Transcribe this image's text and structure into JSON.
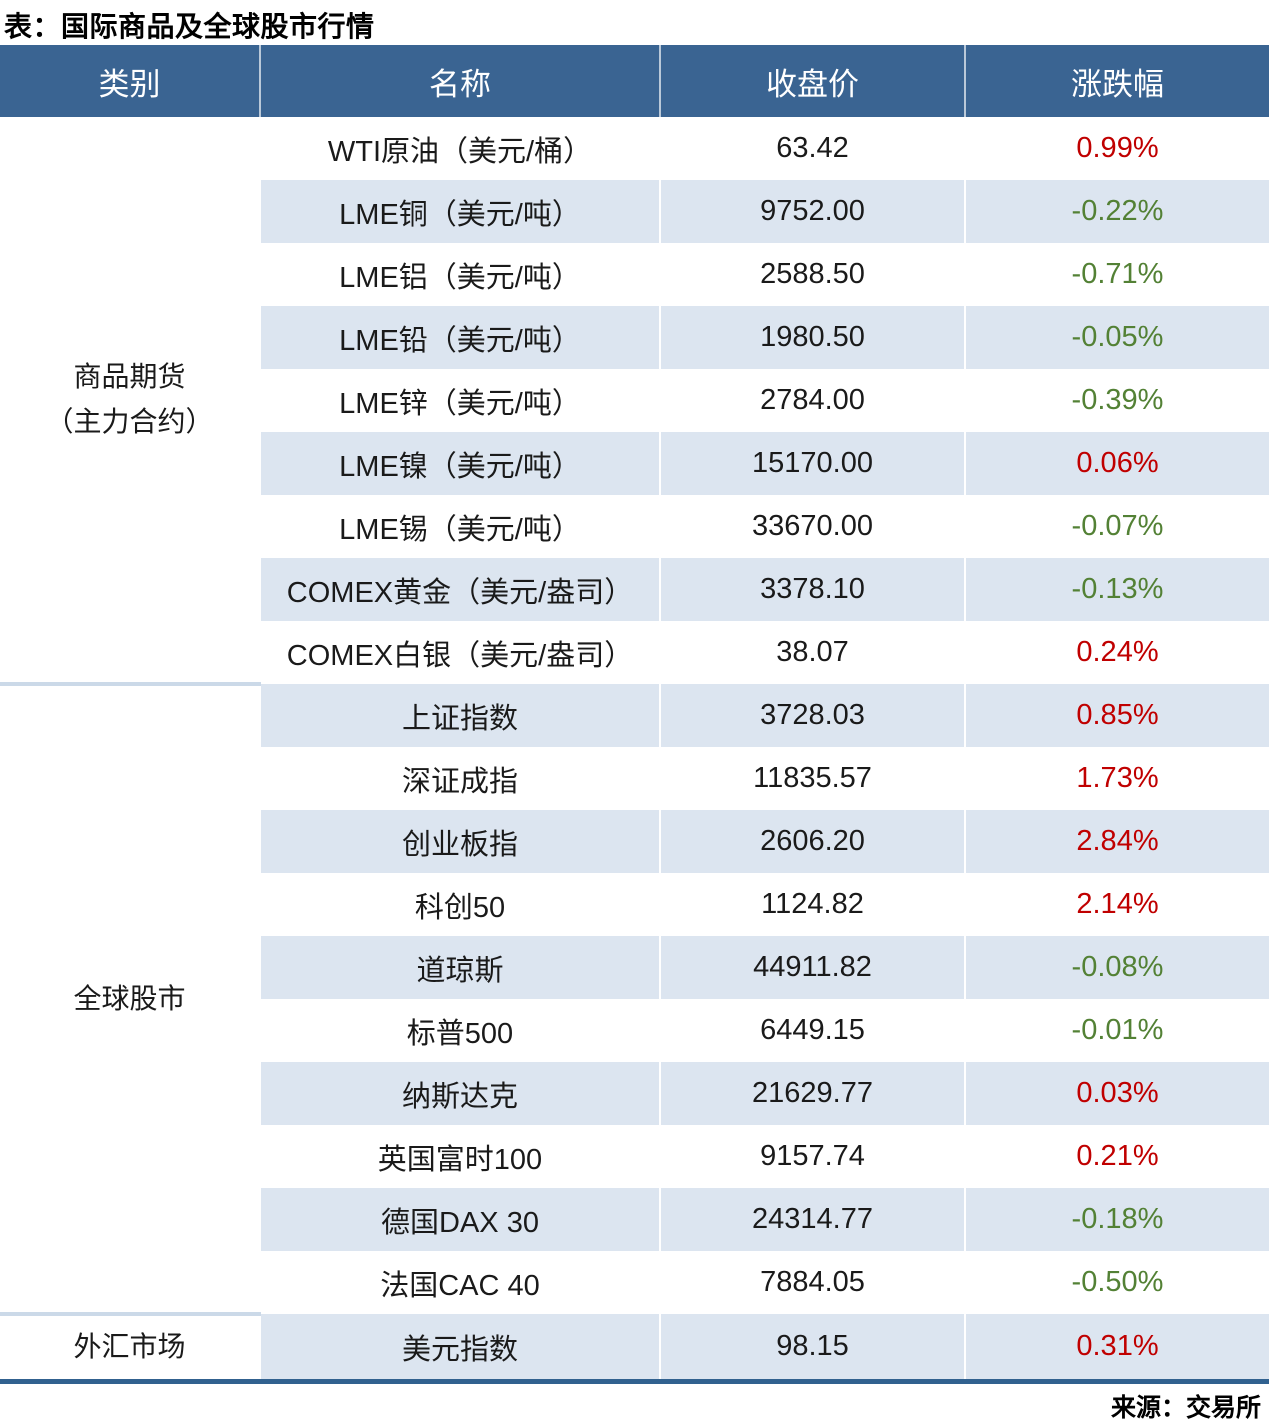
{
  "title": "表：国际商品及全球股市行情",
  "source": "来源：交易所",
  "colors": {
    "header_bg": "#3A6492",
    "header_text": "#FFFFFF",
    "alt_row_bg": "#DCE5F0",
    "row_bg": "#FFFFFF",
    "up": "#C00000",
    "down": "#538135",
    "section_divider": "#CBD9E8",
    "bottom_border": "#31618F",
    "text": "#1A1A1A"
  },
  "table": {
    "columns": [
      "类别",
      "名称",
      "收盘价",
      "涨跌幅"
    ],
    "categories": [
      {
        "label": "商品期货（主力合约）",
        "label_lines": [
          "商品期货",
          "（主力合约）"
        ],
        "rows": [
          {
            "name": "WTI原油（美元/桶）",
            "close": "63.42",
            "change": "0.99%",
            "direction": "up"
          },
          {
            "name": "LME铜（美元/吨）",
            "close": "9752.00",
            "change": "-0.22%",
            "direction": "down"
          },
          {
            "name": "LME铝（美元/吨）",
            "close": "2588.50",
            "change": "-0.71%",
            "direction": "down"
          },
          {
            "name": "LME铅（美元/吨）",
            "close": "1980.50",
            "change": "-0.05%",
            "direction": "down"
          },
          {
            "name": "LME锌（美元/吨）",
            "close": "2784.00",
            "change": "-0.39%",
            "direction": "down"
          },
          {
            "name": "LME镍（美元/吨）",
            "close": "15170.00",
            "change": "0.06%",
            "direction": "up"
          },
          {
            "name": "LME锡（美元/吨）",
            "close": "33670.00",
            "change": "-0.07%",
            "direction": "down"
          },
          {
            "name": "COMEX黄金（美元/盎司）",
            "close": "3378.10",
            "change": "-0.13%",
            "direction": "down"
          },
          {
            "name": "COMEX白银（美元/盎司）",
            "close": "38.07",
            "change": "0.24%",
            "direction": "up"
          }
        ]
      },
      {
        "label": "全球股市",
        "label_lines": [
          "全球股市"
        ],
        "rows": [
          {
            "name": "上证指数",
            "close": "3728.03",
            "change": "0.85%",
            "direction": "up"
          },
          {
            "name": "深证成指",
            "close": "11835.57",
            "change": "1.73%",
            "direction": "up"
          },
          {
            "name": "创业板指",
            "close": "2606.20",
            "change": "2.84%",
            "direction": "up"
          },
          {
            "name": "科创50",
            "close": "1124.82",
            "change": "2.14%",
            "direction": "up"
          },
          {
            "name": "道琼斯",
            "close": "44911.82",
            "change": "-0.08%",
            "direction": "down"
          },
          {
            "name": "标普500",
            "close": "6449.15",
            "change": "-0.01%",
            "direction": "down"
          },
          {
            "name": "纳斯达克",
            "close": "21629.77",
            "change": "0.03%",
            "direction": "up"
          },
          {
            "name": "英国富时100",
            "close": "9157.74",
            "change": "0.21%",
            "direction": "up"
          },
          {
            "name": "德国DAX 30",
            "close": "24314.77",
            "change": "-0.18%",
            "direction": "down"
          },
          {
            "name": "法国CAC 40",
            "close": "7884.05",
            "change": "-0.50%",
            "direction": "down"
          }
        ]
      },
      {
        "label": "外汇市场",
        "label_lines": [
          "外汇市场"
        ],
        "rows": [
          {
            "name": "美元指数",
            "close": "98.15",
            "change": "0.31%",
            "direction": "up"
          }
        ]
      }
    ]
  },
  "chart_data": {
    "type": "table",
    "title": "表：国际商品及全球股市行情",
    "columns": [
      "类别",
      "名称",
      "收盘价",
      "涨跌幅"
    ],
    "rows": [
      [
        "商品期货（主力合约）",
        "WTI原油（美元/桶）",
        63.42,
        "0.99%"
      ],
      [
        "商品期货（主力合约）",
        "LME铜（美元/吨）",
        9752.0,
        "-0.22%"
      ],
      [
        "商品期货（主力合约）",
        "LME铝（美元/吨）",
        2588.5,
        "-0.71%"
      ],
      [
        "商品期货（主力合约）",
        "LME铅（美元/吨）",
        1980.5,
        "-0.05%"
      ],
      [
        "商品期货（主力合约）",
        "LME锌（美元/吨）",
        2784.0,
        "-0.39%"
      ],
      [
        "商品期货（主力合约）",
        "LME镍（美元/吨）",
        15170.0,
        "0.06%"
      ],
      [
        "商品期货（主力合约）",
        "LME锡（美元/吨）",
        33670.0,
        "-0.07%"
      ],
      [
        "商品期货（主力合约）",
        "COMEX黄金（美元/盎司）",
        3378.1,
        "-0.13%"
      ],
      [
        "商品期货（主力合约）",
        "COMEX白银（美元/盎司）",
        38.07,
        "0.24%"
      ],
      [
        "全球股市",
        "上证指数",
        3728.03,
        "0.85%"
      ],
      [
        "全球股市",
        "深证成指",
        11835.57,
        "1.73%"
      ],
      [
        "全球股市",
        "创业板指",
        2606.2,
        "2.84%"
      ],
      [
        "全球股市",
        "科创50",
        1124.82,
        "2.14%"
      ],
      [
        "全球股市",
        "道琼斯",
        44911.82,
        "-0.08%"
      ],
      [
        "全球股市",
        "标普500",
        6449.15,
        "-0.01%"
      ],
      [
        "全球股市",
        "纳斯达克",
        21629.77,
        "0.03%"
      ],
      [
        "全球股市",
        "英国富时100",
        9157.74,
        "0.21%"
      ],
      [
        "全球股市",
        "德国DAX 30",
        24314.77,
        "-0.18%"
      ],
      [
        "全球股市",
        "法国CAC 40",
        7884.05,
        "-0.50%"
      ],
      [
        "外汇市场",
        "美元指数",
        98.15,
        "0.31%"
      ]
    ],
    "source": "来源：交易所",
    "layout_hints": {
      "positive_change_color": "#C00000",
      "negative_change_color": "#538135",
      "striped_rows": true,
      "header_bg": "#3A6492"
    }
  }
}
